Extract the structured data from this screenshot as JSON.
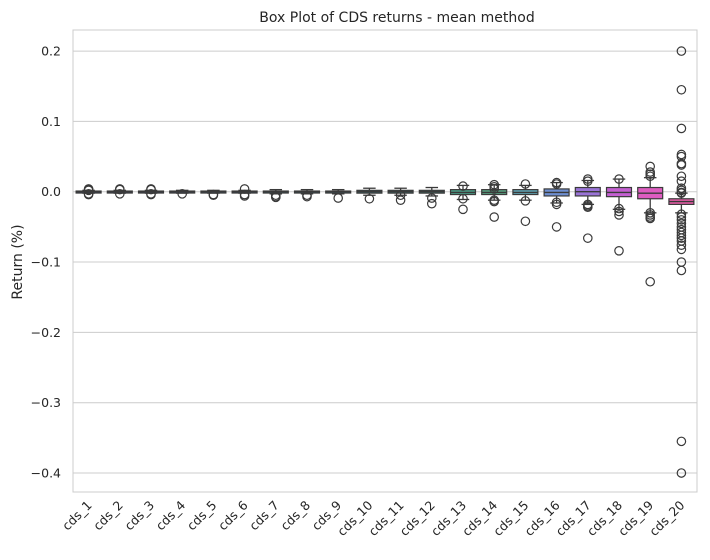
{
  "chart_data": {
    "type": "box",
    "title": "Box Plot of CDS returns - mean method",
    "xlabel": "",
    "ylabel": "Return (%)",
    "ylim": [
      -0.427,
      0.23
    ],
    "yticks": [
      0.2,
      0.1,
      0.0,
      -0.1,
      -0.2,
      -0.3,
      -0.4
    ],
    "ytick_labels": [
      "0.2",
      "0.1",
      "0.0",
      "−0.1",
      "−0.2",
      "−0.3",
      "−0.4"
    ],
    "grid": true,
    "categories": [
      "cds_1",
      "cds_2",
      "cds_3",
      "cds_4",
      "cds_5",
      "cds_6",
      "cds_7",
      "cds_8",
      "cds_9",
      "cds_10",
      "cds_11",
      "cds_12",
      "cds_13",
      "cds_14",
      "cds_15",
      "cds_16",
      "cds_17",
      "cds_18",
      "cds_19",
      "cds_20"
    ],
    "colors": [
      "#3d4c8c",
      "#444d8c",
      "#3f5189",
      "#3b5a8a",
      "#3a6189",
      "#38698a",
      "#37708c",
      "#36788d",
      "#35808e",
      "#35888e",
      "#3a8f8c",
      "#3e968a",
      "#4a9c86",
      "#58a281",
      "#5fa3b3",
      "#6e8fd1",
      "#9a73d6",
      "#c45fd1",
      "#de5cc0",
      "#e85ca8"
    ],
    "boxes": [
      {
        "q1": -0.001,
        "median": 0.0,
        "q3": 0.001,
        "wlo": -0.002,
        "whi": 0.002,
        "outliers": [
          0.004,
          0.003,
          -0.003,
          -0.004,
          0.002
        ]
      },
      {
        "q1": -0.001,
        "median": 0.0,
        "q3": 0.001,
        "wlo": -0.002,
        "whi": 0.002,
        "outliers": [
          0.004,
          0.003,
          -0.003
        ]
      },
      {
        "q1": -0.001,
        "median": 0.0,
        "q3": 0.001,
        "wlo": -0.002,
        "whi": 0.002,
        "outliers": [
          0.004,
          0.003,
          -0.003,
          -0.004
        ]
      },
      {
        "q1": -0.001,
        "median": 0.0,
        "q3": 0.001,
        "wlo": -0.002,
        "whi": 0.002,
        "outliers": [
          -0.003
        ]
      },
      {
        "q1": -0.001,
        "median": 0.0,
        "q3": 0.001,
        "wlo": -0.002,
        "whi": 0.002,
        "outliers": [
          -0.004,
          -0.005
        ]
      },
      {
        "q1": -0.001,
        "median": 0.0,
        "q3": 0.001,
        "wlo": -0.002,
        "whi": 0.002,
        "outliers": [
          0.004,
          -0.004,
          -0.006
        ]
      },
      {
        "q1": -0.001,
        "median": 0.0,
        "q3": 0.001,
        "wlo": -0.003,
        "whi": 0.003,
        "outliers": [
          -0.005,
          -0.007,
          -0.008
        ]
      },
      {
        "q1": -0.001,
        "median": 0.0,
        "q3": 0.001,
        "wlo": -0.003,
        "whi": 0.003,
        "outliers": [
          -0.005,
          -0.007
        ]
      },
      {
        "q1": -0.001,
        "median": 0.0,
        "q3": 0.001,
        "wlo": -0.003,
        "whi": 0.003,
        "outliers": [
          -0.009
        ]
      },
      {
        "q1": -0.002,
        "median": 0.0,
        "q3": 0.002,
        "wlo": -0.005,
        "whi": 0.005,
        "outliers": [
          -0.01
        ]
      },
      {
        "q1": -0.002,
        "median": 0.0,
        "q3": 0.002,
        "wlo": -0.005,
        "whi": 0.005,
        "outliers": [
          -0.005,
          -0.012
        ]
      },
      {
        "q1": -0.002,
        "median": 0.0,
        "q3": 0.002,
        "wlo": -0.006,
        "whi": 0.006,
        "outliers": [
          -0.009,
          -0.017
        ]
      },
      {
        "q1": -0.004,
        "median": -0.001,
        "q3": 0.003,
        "wlo": -0.011,
        "whi": 0.009,
        "outliers": [
          0.008,
          -0.01,
          -0.025
        ]
      },
      {
        "q1": -0.004,
        "median": -0.001,
        "q3": 0.003,
        "wlo": -0.012,
        "whi": 0.01,
        "outliers": [
          0.01,
          0.007,
          0.004,
          -0.012,
          -0.014,
          -0.036
        ]
      },
      {
        "q1": -0.004,
        "median": -0.001,
        "q3": 0.003,
        "wlo": -0.012,
        "whi": 0.009,
        "outliers": [
          0.011,
          -0.013,
          -0.042
        ]
      },
      {
        "q1": -0.006,
        "median": -0.001,
        "q3": 0.004,
        "wlo": -0.016,
        "whi": 0.013,
        "outliers": [
          0.013,
          0.011,
          -0.015,
          -0.018,
          -0.05
        ]
      },
      {
        "q1": -0.006,
        "median": 0.0,
        "q3": 0.006,
        "wlo": -0.018,
        "whi": 0.016,
        "outliers": [
          0.018,
          0.015,
          -0.018,
          -0.02,
          -0.022,
          -0.066
        ]
      },
      {
        "q1": -0.007,
        "median": -0.001,
        "q3": 0.006,
        "wlo": -0.025,
        "whi": 0.018,
        "outliers": [
          0.018,
          -0.024,
          -0.028,
          -0.033,
          -0.084
        ]
      },
      {
        "q1": -0.01,
        "median": -0.002,
        "q3": 0.006,
        "wlo": -0.03,
        "whi": 0.02,
        "outliers": [
          0.036,
          0.028,
          0.025,
          0.022,
          -0.03,
          -0.033,
          -0.036,
          -0.038,
          -0.128
        ]
      },
      {
        "q1": -0.018,
        "median": -0.014,
        "q3": -0.01,
        "wlo": -0.03,
        "whi": -0.002,
        "outliers": [
          0.2,
          0.145,
          0.09,
          0.053,
          0.05,
          0.04,
          0.038,
          0.022,
          0.015,
          0.005,
          0.002,
          -0.001,
          -0.002,
          -0.032,
          -0.036,
          -0.04,
          -0.045,
          -0.05,
          -0.054,
          -0.058,
          -0.062,
          -0.066,
          -0.07,
          -0.076,
          -0.082,
          -0.1,
          -0.112,
          -0.355,
          -0.4
        ]
      }
    ]
  }
}
